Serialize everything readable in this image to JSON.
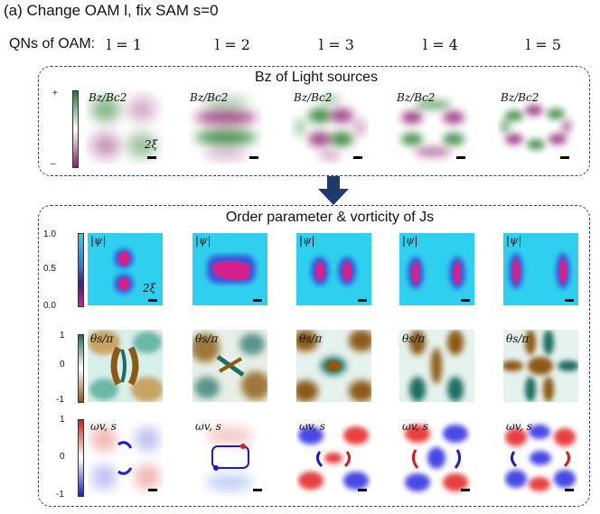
{
  "figure": {
    "title": "(a) Change OAM l, fix SAM s=0",
    "qn_label": "QNs of OAM:",
    "qn_values": [
      "l = 1",
      "l = 2",
      "l = 3",
      "l = 4",
      "l = 5"
    ]
  },
  "top_panel": {
    "title": "Bz of Light sources",
    "map_label": "Bz/Bc2",
    "colorbar_top": "+",
    "colorbar_bottom": "–",
    "scale_label": "2ξ"
  },
  "bottom_panel": {
    "title": "Order parameter & vorticity of Js",
    "rows": [
      {
        "label": "|ψ|",
        "ticks": [
          "1.0",
          "0.5",
          "0.0"
        ],
        "scale_label": "2ξ"
      },
      {
        "label": "θs/π",
        "ticks": [
          "1",
          "0",
          "-1"
        ]
      },
      {
        "label": "ωv, s",
        "ticks": [
          "1",
          "0",
          "-1"
        ]
      }
    ]
  },
  "colors": {
    "panel_border": "#2a3f6e",
    "arrow": "#1f3a6d",
    "bz_positive": "#1e7a2a",
    "bz_negative": "#8a1c6c",
    "psi_high": "#2fd0ef",
    "psi_low": "#d8208c",
    "theta_positive": "#1e6e62",
    "theta_negative": "#8c5a12",
    "omega_positive": "#e01818",
    "omega_negative": "#1a1ad8"
  },
  "icons": {
    "arrow": "arrow-down-icon"
  }
}
